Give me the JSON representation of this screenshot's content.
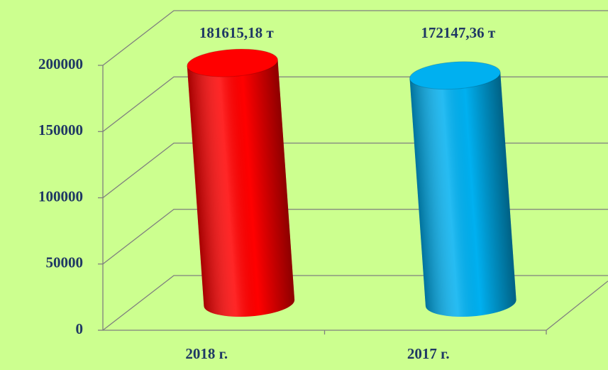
{
  "chart_data": {
    "type": "bar",
    "categories": [
      "2018 г.",
      "2017 г."
    ],
    "values": [
      181615.18,
      172147.36
    ],
    "value_labels": [
      "181615,18 т",
      "172147,36 т"
    ],
    "colors": [
      "#ff0000",
      "#00b0f0"
    ],
    "ylim": [
      0,
      200000
    ],
    "yticks": [
      0,
      50000,
      100000,
      150000,
      200000
    ],
    "grid": true
  }
}
